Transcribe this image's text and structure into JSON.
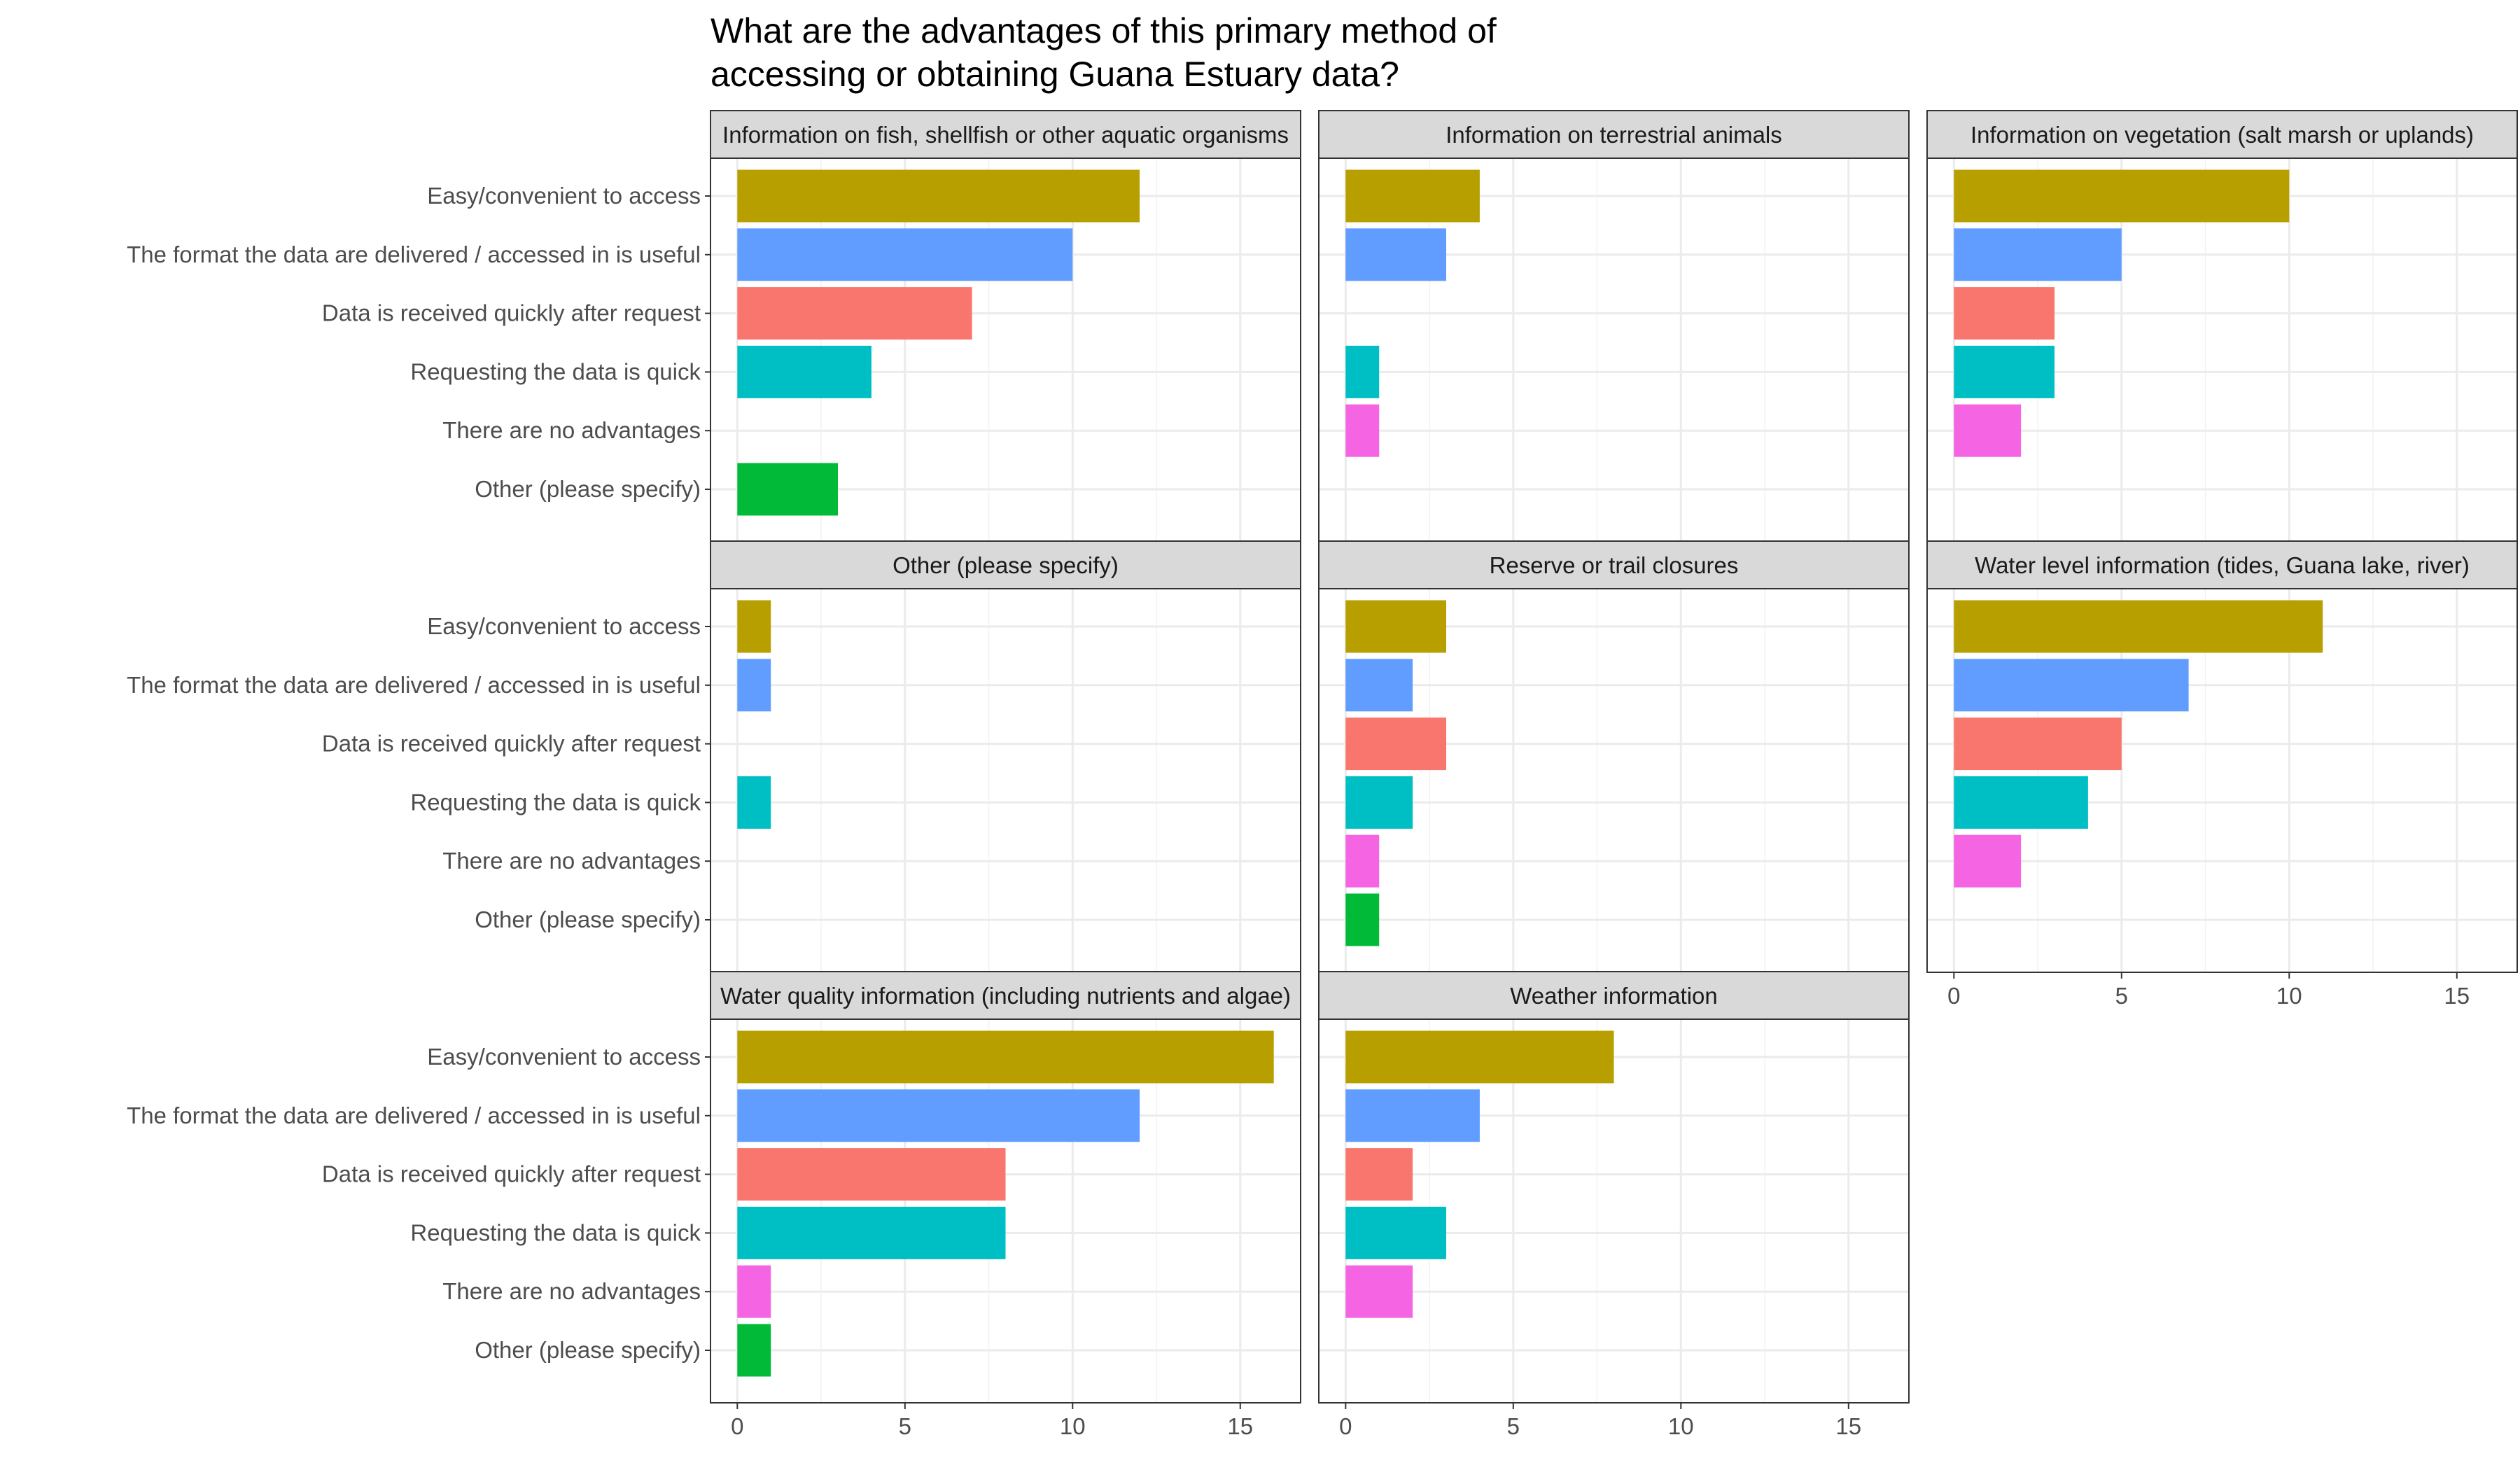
{
  "chart_data": {
    "type": "bar",
    "orientation": "horizontal",
    "title": "What are the advantages of this primary method of accessing or obtaining Guana Estuary data?",
    "title_lines": [
      "What are the advantages of this primary method of",
      "accessing or obtaining Guana Estuary data?"
    ],
    "xlabel": "",
    "ylabel": "",
    "xlim": [
      -0.8,
      16.8
    ],
    "xticks": [
      0,
      5,
      10,
      15
    ],
    "grid": true,
    "legend": "none",
    "categories": [
      "Easy/convenient to access",
      "The format the data are delivered / accessed in is useful",
      "Data is received quickly after request",
      "Requesting the data is quick",
      "There are no advantages",
      "Other (please specify)"
    ],
    "category_colors": [
      "#B79F00",
      "#619CFF",
      "#F8766D",
      "#00BFC4",
      "#F564E3",
      "#00BA38"
    ],
    "panels": [
      {
        "title": "Information on fish, shellfish or other aquatic organisms",
        "values": [
          12,
          10,
          7,
          4,
          0,
          3
        ]
      },
      {
        "title": "Information on terrestrial animals",
        "values": [
          4,
          3,
          0,
          1,
          1,
          0
        ]
      },
      {
        "title": "Information on vegetation (salt marsh or uplands)",
        "values": [
          10,
          5,
          3,
          3,
          2,
          0
        ]
      },
      {
        "title": "Other (please specify)",
        "values": [
          1,
          1,
          0,
          1,
          0,
          0
        ]
      },
      {
        "title": "Reserve or trail closures",
        "values": [
          3,
          2,
          3,
          2,
          1,
          1
        ]
      },
      {
        "title": "Water level information (tides, Guana lake, river)",
        "values": [
          11,
          7,
          5,
          4,
          2,
          0
        ]
      },
      {
        "title": "Water quality information (including nutrients and algae)",
        "values": [
          16,
          12,
          8,
          8,
          1,
          1
        ]
      },
      {
        "title": "Weather information",
        "values": [
          8,
          4,
          2,
          3,
          2,
          0
        ]
      }
    ]
  }
}
